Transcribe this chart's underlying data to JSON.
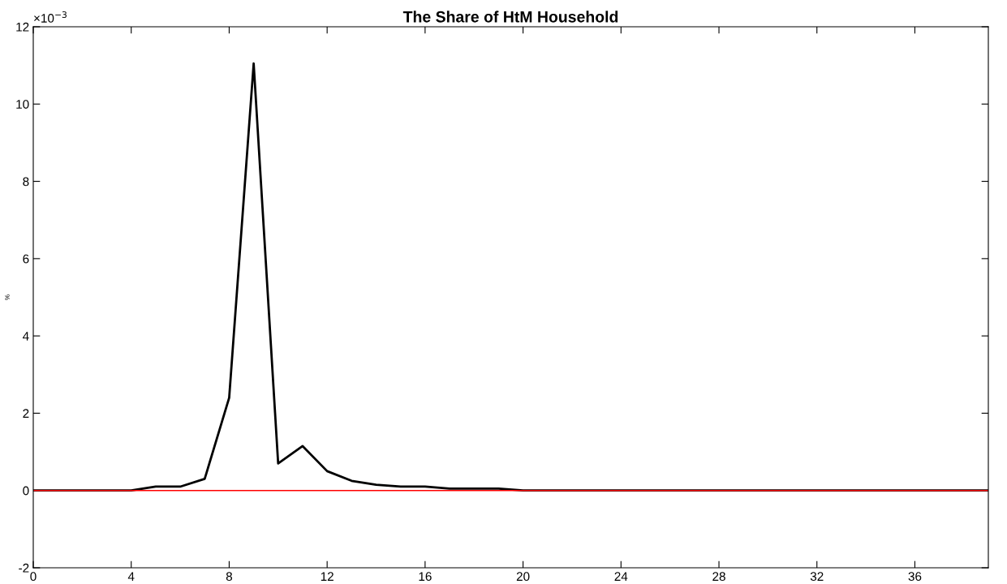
{
  "chart_data": {
    "type": "line",
    "title": "The Share of HtM Household",
    "ylabel": "%",
    "annotations": [
      "×10$^{−3}$"
    ],
    "x": [
      0,
      1,
      2,
      3,
      4,
      5,
      6,
      7,
      8,
      9,
      10,
      11,
      12,
      13,
      14,
      15,
      16,
      17,
      18,
      19,
      20,
      21,
      22,
      23,
      24,
      25,
      26,
      27,
      28,
      29,
      30,
      31,
      32,
      33,
      34,
      35,
      36,
      37,
      38,
      39
    ],
    "series": [
      {
        "color": "#000000",
        "values": [
          0,
          0,
          0,
          0,
          0,
          0.1,
          0.1,
          0.3,
          2.4,
          11.05,
          0.7,
          1.15,
          0.5,
          0.25,
          0.15,
          0.1,
          0.1,
          0.05,
          0.05,
          0.05,
          0,
          0,
          0,
          0,
          0,
          0,
          0,
          0,
          0,
          0,
          0,
          0,
          0,
          0,
          0,
          0,
          0,
          0,
          0,
          0
        ]
      },
      {
        "color": "#ff0000",
        "values": [
          0,
          0,
          0,
          0,
          0,
          0,
          0,
          0,
          0,
          0,
          0,
          0,
          0,
          0,
          0,
          0,
          0,
          0,
          0,
          0,
          0,
          0,
          0,
          0,
          0,
          0,
          0,
          0,
          0,
          0,
          0,
          0,
          0,
          0,
          0,
          0,
          0,
          0,
          0,
          0
        ]
      }
    ],
    "xlim": [
      0,
      39
    ],
    "xticks": [
      0,
      4,
      8,
      12,
      16,
      20,
      24,
      28,
      32,
      36
    ],
    "ylim": [
      -2,
      12
    ],
    "yticks": [
      -2,
      0,
      2,
      4,
      6,
      8,
      10,
      12
    ],
    "grid": false,
    "legend": false
  }
}
